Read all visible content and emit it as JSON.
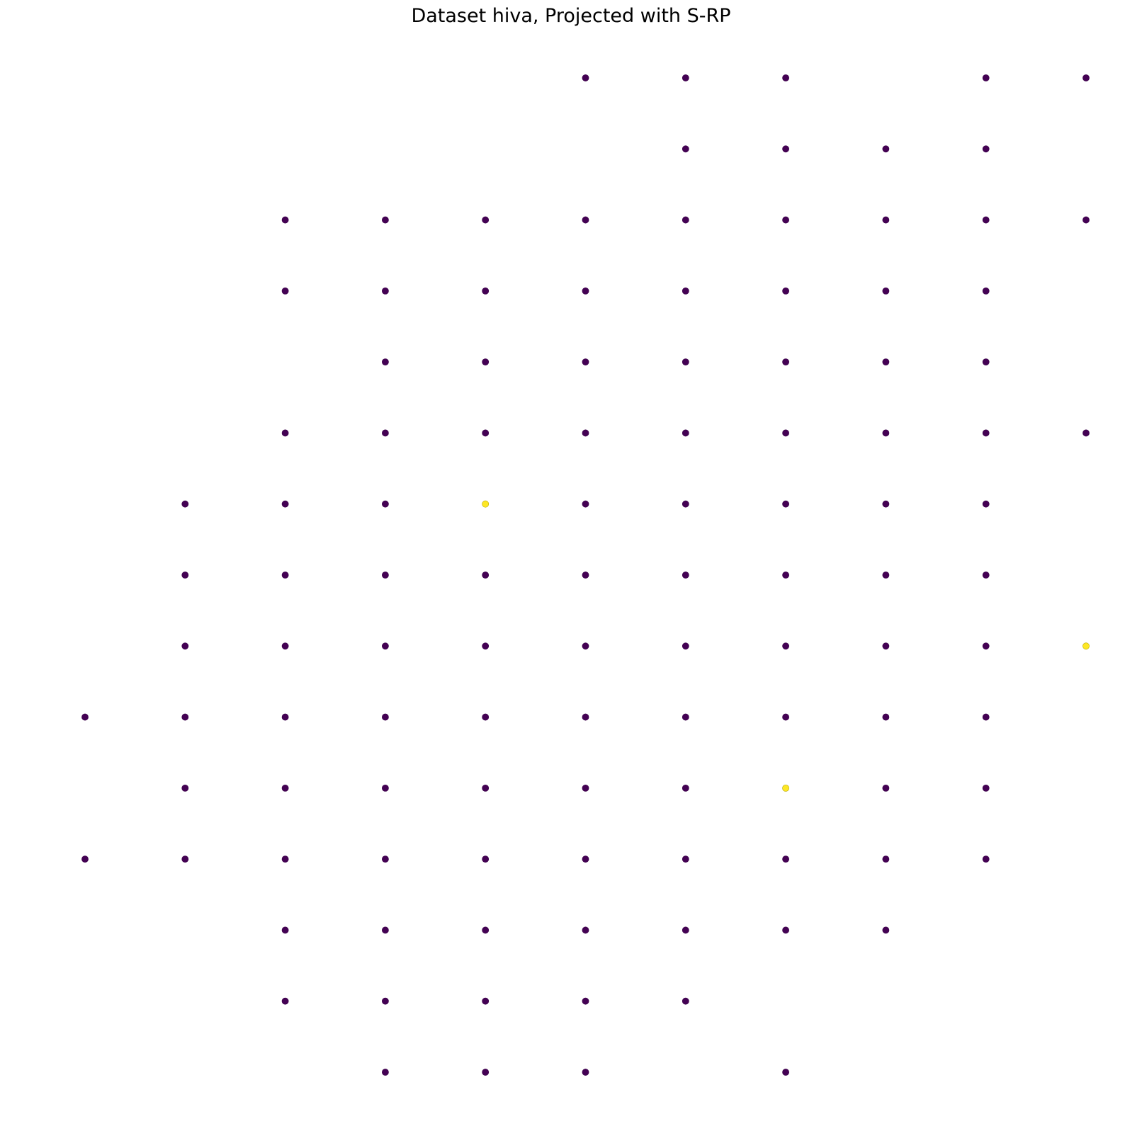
{
  "chart_data": {
    "type": "scatter",
    "title": "Dataset hiva, Projected with S-RP",
    "xlabel": "",
    "ylabel": "",
    "axes_visible": false,
    "grid": false,
    "legend": "none",
    "xlim": [
      0,
      10
    ],
    "ylim": [
      0,
      14
    ],
    "colors": {
      "class_0": "#440154",
      "class_1": "#fde725"
    },
    "series": [
      {
        "values": [
          [
            5,
            14
          ],
          [
            6,
            14
          ],
          [
            7,
            14
          ],
          [
            9,
            14
          ],
          [
            10,
            14
          ],
          [
            6,
            13
          ],
          [
            7,
            13
          ],
          [
            8,
            13
          ],
          [
            9,
            13
          ],
          [
            2,
            12
          ],
          [
            3,
            12
          ],
          [
            4,
            12
          ],
          [
            5,
            12
          ],
          [
            6,
            12
          ],
          [
            7,
            12
          ],
          [
            8,
            12
          ],
          [
            9,
            12
          ],
          [
            10,
            12
          ],
          [
            2,
            11
          ],
          [
            3,
            11
          ],
          [
            4,
            11
          ],
          [
            5,
            11
          ],
          [
            6,
            11
          ],
          [
            7,
            11
          ],
          [
            8,
            11
          ],
          [
            9,
            11
          ],
          [
            3,
            10
          ],
          [
            4,
            10
          ],
          [
            5,
            10
          ],
          [
            6,
            10
          ],
          [
            7,
            10
          ],
          [
            8,
            10
          ],
          [
            9,
            10
          ],
          [
            2,
            9
          ],
          [
            3,
            9
          ],
          [
            4,
            9
          ],
          [
            5,
            9
          ],
          [
            6,
            9
          ],
          [
            7,
            9
          ],
          [
            8,
            9
          ],
          [
            9,
            9
          ],
          [
            10,
            9
          ],
          [
            1,
            8
          ],
          [
            2,
            8
          ],
          [
            3,
            8
          ],
          [
            5,
            8
          ],
          [
            6,
            8
          ],
          [
            7,
            8
          ],
          [
            8,
            8
          ],
          [
            9,
            8
          ],
          [
            1,
            7
          ],
          [
            2,
            7
          ],
          [
            3,
            7
          ],
          [
            4,
            7
          ],
          [
            5,
            7
          ],
          [
            6,
            7
          ],
          [
            7,
            7
          ],
          [
            8,
            7
          ],
          [
            9,
            7
          ],
          [
            1,
            6
          ],
          [
            2,
            6
          ],
          [
            3,
            6
          ],
          [
            4,
            6
          ],
          [
            5,
            6
          ],
          [
            6,
            6
          ],
          [
            7,
            6
          ],
          [
            8,
            6
          ],
          [
            9,
            6
          ],
          [
            0,
            5
          ],
          [
            1,
            5
          ],
          [
            2,
            5
          ],
          [
            3,
            5
          ],
          [
            4,
            5
          ],
          [
            5,
            5
          ],
          [
            6,
            5
          ],
          [
            7,
            5
          ],
          [
            8,
            5
          ],
          [
            9,
            5
          ],
          [
            1,
            4
          ],
          [
            2,
            4
          ],
          [
            3,
            4
          ],
          [
            4,
            4
          ],
          [
            5,
            4
          ],
          [
            6,
            4
          ],
          [
            8,
            4
          ],
          [
            9,
            4
          ],
          [
            0,
            3
          ],
          [
            1,
            3
          ],
          [
            2,
            3
          ],
          [
            3,
            3
          ],
          [
            4,
            3
          ],
          [
            5,
            3
          ],
          [
            6,
            3
          ],
          [
            7,
            3
          ],
          [
            8,
            3
          ],
          [
            9,
            3
          ],
          [
            2,
            2
          ],
          [
            3,
            2
          ],
          [
            4,
            2
          ],
          [
            5,
            2
          ],
          [
            6,
            2
          ],
          [
            7,
            2
          ],
          [
            8,
            2
          ],
          [
            2,
            1
          ],
          [
            3,
            1
          ],
          [
            4,
            1
          ],
          [
            5,
            1
          ],
          [
            6,
            1
          ],
          [
            3,
            0
          ],
          [
            4,
            0
          ],
          [
            5,
            0
          ],
          [
            7,
            0
          ]
        ]
      },
      {
        "values": [
          [
            4,
            8
          ],
          [
            10,
            6
          ],
          [
            7,
            4
          ]
        ]
      }
    ]
  }
}
